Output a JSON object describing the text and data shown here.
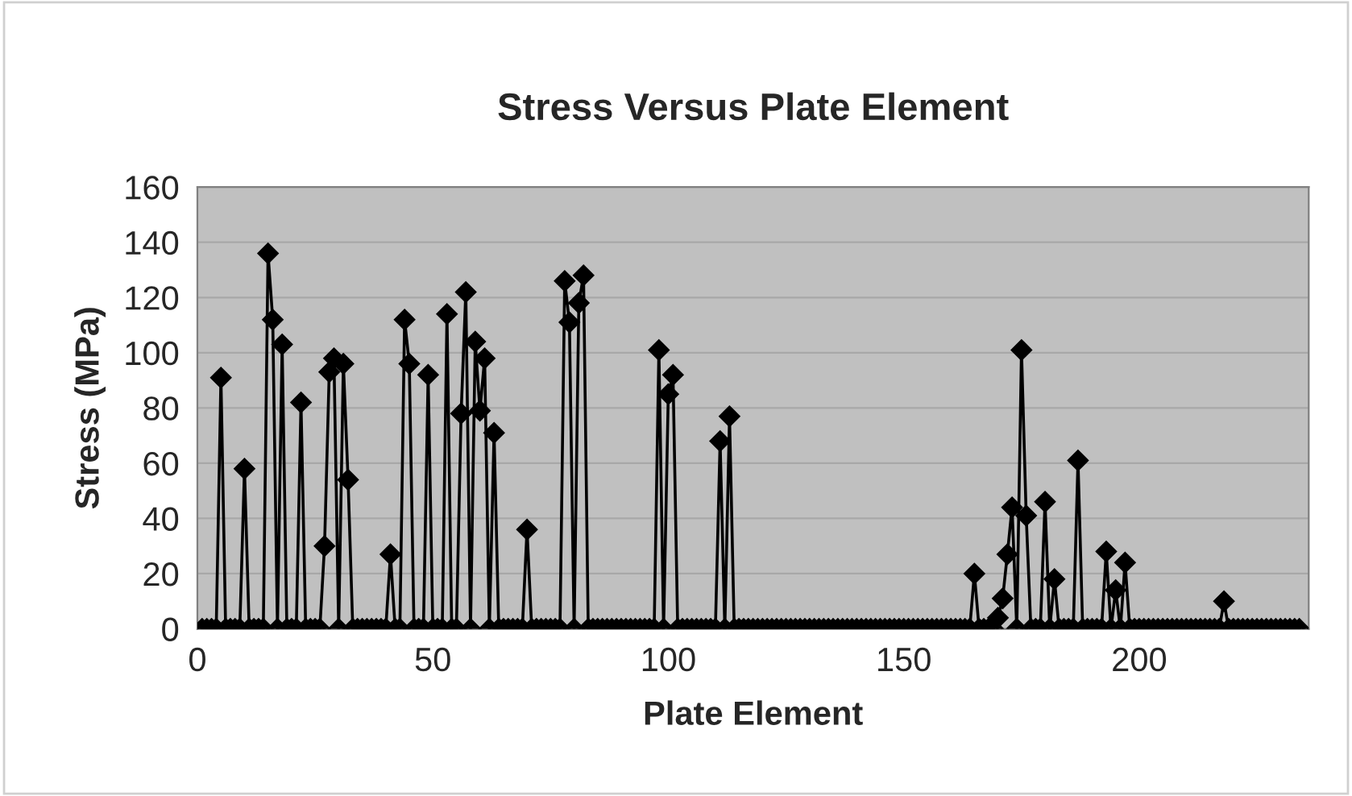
{
  "chart_data": {
    "type": "line",
    "title": "Stress Versus Plate Element",
    "xlabel": "Plate Element",
    "ylabel": "Stress (MPa)",
    "xlim": [
      0,
      236
    ],
    "xticks": [
      0,
      50,
      100,
      150,
      200
    ],
    "ylim": [
      0,
      160
    ],
    "yticks": [
      0,
      20,
      40,
      60,
      80,
      100,
      120,
      140,
      160
    ],
    "grid": "y",
    "marker": "diamond",
    "line_style": "solid",
    "legend": false,
    "series": [
      {
        "color": "#000000",
        "x": [
          1,
          2,
          3,
          4,
          5,
          6,
          7,
          8,
          9,
          10,
          11,
          12,
          13,
          14,
          15,
          16,
          17,
          18,
          19,
          20,
          21,
          22,
          23,
          24,
          25,
          26,
          27,
          28,
          29,
          30,
          31,
          32,
          33,
          34,
          35,
          36,
          37,
          38,
          39,
          40,
          41,
          42,
          43,
          44,
          45,
          46,
          47,
          48,
          49,
          50,
          51,
          52,
          53,
          54,
          55,
          56,
          57,
          58,
          59,
          60,
          61,
          62,
          63,
          64,
          65,
          66,
          67,
          68,
          69,
          70,
          71,
          72,
          73,
          74,
          75,
          76,
          77,
          78,
          79,
          80,
          81,
          82,
          83,
          84,
          85,
          86,
          87,
          88,
          89,
          90,
          91,
          92,
          93,
          94,
          95,
          96,
          97,
          98,
          99,
          100,
          101,
          102,
          103,
          104,
          105,
          106,
          107,
          108,
          109,
          110,
          111,
          112,
          113,
          114,
          115,
          116,
          117,
          118,
          119,
          120,
          121,
          122,
          123,
          124,
          125,
          126,
          127,
          128,
          129,
          130,
          131,
          132,
          133,
          134,
          135,
          136,
          137,
          138,
          139,
          140,
          141,
          142,
          143,
          144,
          145,
          146,
          147,
          148,
          149,
          150,
          151,
          152,
          153,
          154,
          155,
          156,
          157,
          158,
          159,
          160,
          161,
          162,
          163,
          164,
          165,
          166,
          167,
          168,
          169,
          170,
          171,
          172,
          173,
          174,
          175,
          176,
          177,
          178,
          179,
          180,
          181,
          182,
          183,
          184,
          185,
          186,
          187,
          188,
          189,
          190,
          191,
          192,
          193,
          194,
          195,
          196,
          197,
          198,
          199,
          200,
          201,
          202,
          203,
          204,
          205,
          206,
          207,
          208,
          209,
          210,
          211,
          212,
          213,
          214,
          215,
          216,
          217,
          218,
          219,
          220,
          221,
          222,
          223,
          224,
          225,
          226,
          227,
          228,
          229,
          230,
          231,
          232,
          233,
          234
        ],
        "values": [
          0,
          0,
          0,
          0,
          91,
          0,
          0,
          0,
          0,
          58,
          0,
          0,
          0,
          0,
          136,
          112,
          0,
          103,
          0,
          0,
          0,
          82,
          0,
          0,
          0,
          0,
          30,
          93,
          98,
          0,
          96,
          54,
          0,
          0,
          0,
          0,
          0,
          0,
          0,
          0,
          27,
          0,
          0,
          112,
          96,
          0,
          0,
          0,
          92,
          0,
          0,
          0,
          114,
          0,
          0,
          78,
          122,
          0,
          104,
          79,
          98,
          0,
          71,
          0,
          0,
          0,
          0,
          0,
          0,
          36,
          0,
          0,
          0,
          0,
          0,
          0,
          0,
          126,
          111,
          0,
          118,
          128,
          0,
          0,
          0,
          0,
          0,
          0,
          0,
          0,
          0,
          0,
          0,
          0,
          0,
          0,
          0,
          101,
          0,
          85,
          92,
          0,
          0,
          0,
          0,
          0,
          0,
          0,
          0,
          0,
          68,
          0,
          77,
          0,
          0,
          0,
          0,
          0,
          0,
          0,
          0,
          0,
          0,
          0,
          0,
          0,
          0,
          0,
          0,
          0,
          0,
          0,
          0,
          0,
          0,
          0,
          0,
          0,
          0,
          0,
          0,
          0,
          0,
          0,
          0,
          0,
          0,
          0,
          0,
          0,
          0,
          0,
          0,
          0,
          0,
          0,
          0,
          0,
          0,
          0,
          0,
          0,
          0,
          0,
          20,
          0,
          0,
          0,
          0,
          4,
          11,
          27,
          44,
          0,
          101,
          41,
          0,
          0,
          0,
          46,
          0,
          18,
          0,
          0,
          0,
          0,
          61,
          0,
          0,
          0,
          0,
          0,
          28,
          0,
          14,
          0,
          24,
          0,
          0,
          0,
          0,
          0,
          0,
          0,
          0,
          0,
          0,
          0,
          0,
          0,
          0,
          0,
          0,
          0,
          0,
          0,
          0,
          10,
          0,
          0,
          0,
          0,
          0,
          0,
          0,
          0,
          0,
          0,
          0,
          0,
          0,
          0,
          0,
          0
        ]
      }
    ]
  }
}
